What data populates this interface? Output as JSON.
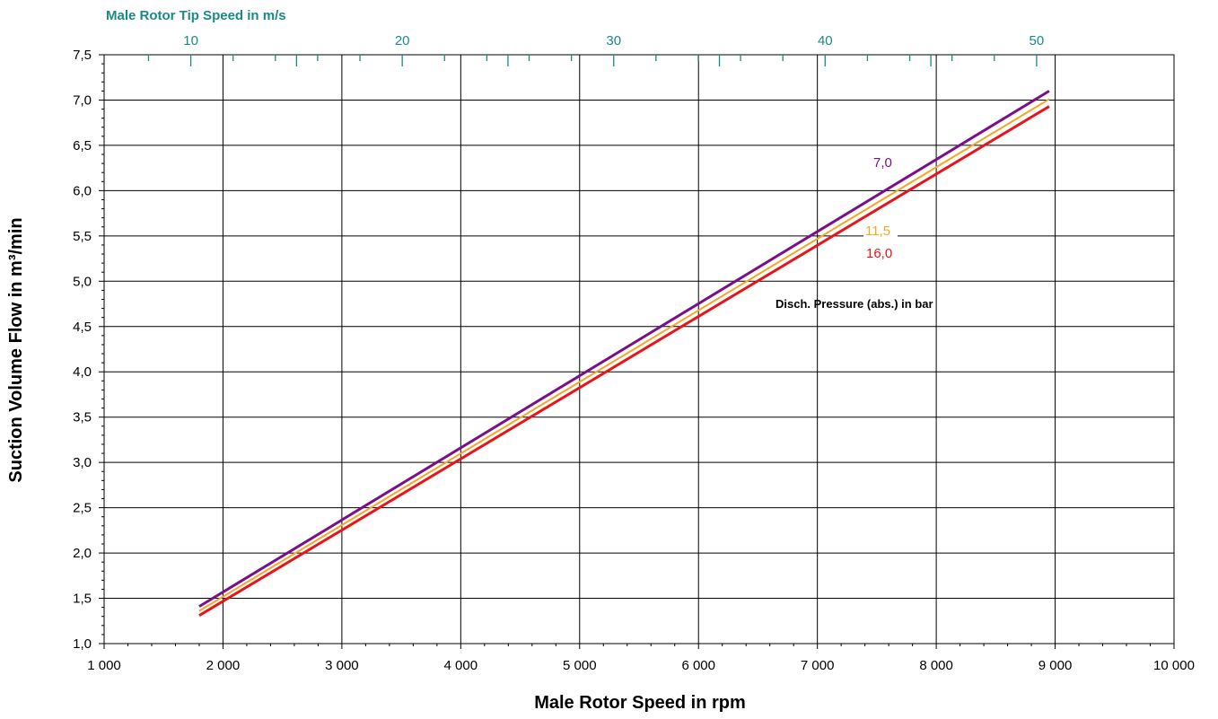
{
  "chart_data": {
    "type": "line",
    "xlabel": "Male Rotor Speed in rpm",
    "ylabel": "Suction Volume Flow in m³/min",
    "secondary_xlabel": "Male Rotor Tip Speed in m/s",
    "xlim": [
      1000,
      10000
    ],
    "ylim": [
      1.0,
      7.5
    ],
    "secondary_xlim": [
      5.9,
      56.5
    ],
    "x_ticks": [
      1000,
      2000,
      3000,
      4000,
      5000,
      6000,
      7000,
      8000,
      9000,
      10000
    ],
    "x_tick_labels": [
      "1 000",
      "2 000",
      "3 000",
      "4 000",
      "5 000",
      "6 000",
      "7 000",
      "8 000",
      "9 000",
      "10 000"
    ],
    "y_ticks": [
      1.0,
      1.5,
      2.0,
      2.5,
      3.0,
      3.5,
      4.0,
      4.5,
      5.0,
      5.5,
      6.0,
      6.5,
      7.0,
      7.5
    ],
    "y_tick_labels": [
      "1,0",
      "1,5",
      "2,0",
      "2,5",
      "3,0",
      "3,5",
      "4,0",
      "4,5",
      "5,0",
      "5,5",
      "6,0",
      "6,5",
      "7,0",
      "7,5"
    ],
    "secondary_x_ticks": [
      10,
      20,
      30,
      40,
      50
    ],
    "secondary_x_tick_labels": [
      "10",
      "20",
      "30",
      "40",
      "50"
    ],
    "grid": true,
    "legend_title": "Disch. Pressure (abs.) in bar",
    "series": [
      {
        "name": "7,0",
        "color": "#7b0f8a",
        "x": [
          1800,
          8950
        ],
        "y": [
          1.41,
          7.1
        ]
      },
      {
        "name": "11,5",
        "color": "#f5a623",
        "x": [
          1800,
          8950
        ],
        "y": [
          1.36,
          7.01
        ]
      },
      {
        "name": "16,0",
        "color": "#e8141a",
        "x": [
          1800,
          8950
        ],
        "y": [
          1.31,
          6.93
        ]
      }
    ]
  },
  "colors": {
    "secondary_axis": "#1b8a85",
    "grid": "#000000"
  }
}
